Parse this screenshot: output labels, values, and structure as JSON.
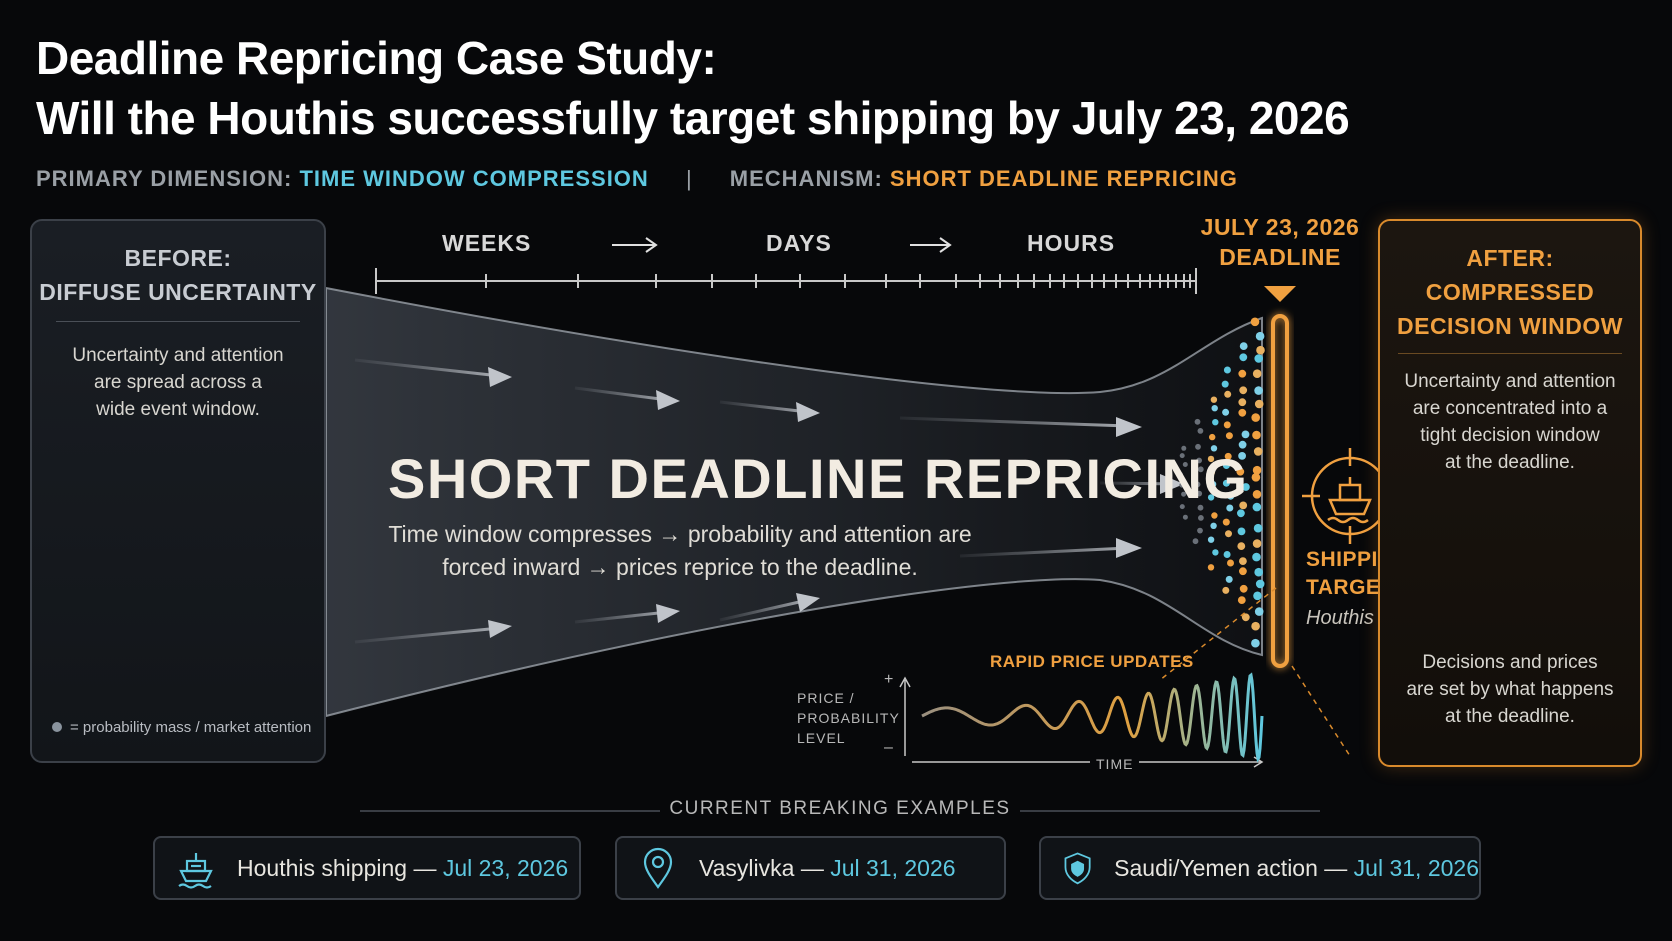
{
  "title": {
    "line1": "Deadline Repricing Case Study:",
    "line2": "Will the Houthis successfully target shipping by July 23, 2026"
  },
  "subtitle": {
    "dimension_label": "PRIMARY DIMENSION:",
    "dimension_value": "TIME WINDOW COMPRESSION",
    "separator": "|",
    "mechanism_label": "MECHANISM:",
    "mechanism_value": "SHORT DEADLINE REPRICING"
  },
  "before_panel": {
    "heading_line1": "BEFORE:",
    "heading_line2": "DIFFUSE UNCERTAINTY",
    "body": [
      "Uncertainty and attention",
      "are spread across a",
      "wide event window."
    ],
    "legend": "= probability mass / market attention"
  },
  "timeline": {
    "stages": [
      "WEEKS",
      "DAYS",
      "HOURS"
    ],
    "arrow": "→",
    "deadline_line1": "JULY 23, 2026",
    "deadline_line2": "DEADLINE"
  },
  "funnel": {
    "label": "SHORT DEADLINE REPRICING",
    "desc_line1": "Time window compresses → probability and attention are",
    "desc_line2": "forced inward → prices reprice to the deadline."
  },
  "price_chart": {
    "title": "RAPID PRICE UPDATES",
    "y_label": [
      "PRICE /",
      "PROBABILITY",
      "LEVEL"
    ],
    "y_plus": "+",
    "y_minus": "–",
    "x_label": "TIME"
  },
  "target_event": {
    "line1": "SHIPPING",
    "line2": "TARGET EVENT",
    "sub": "Houthis case"
  },
  "after_panel": {
    "heading_line1": "AFTER:",
    "heading_line2": "COMPRESSED",
    "heading_line3": "DECISION WINDOW",
    "body": [
      "Uncertainty and attention",
      "are concentrated into a",
      "tight decision window",
      "at the deadline."
    ],
    "footer": [
      "Decisions and prices",
      "are set by what happens",
      "at the deadline."
    ]
  },
  "examples": {
    "heading": "CURRENT BREAKING EXAMPLES",
    "items": [
      {
        "name": "Houthis shipping",
        "dash": "—",
        "date": "Jul 23, 2026",
        "icon": "ship-icon"
      },
      {
        "name": "Vasylivka",
        "dash": "—",
        "date": "Jul 31, 2026",
        "icon": "map-pin-icon"
      },
      {
        "name": "Saudi/Yemen action",
        "dash": "—",
        "date": "Jul 31, 2026",
        "icon": "shield-icon"
      }
    ]
  },
  "colors": {
    "amber": "#f0a040",
    "cyan": "#5ec8e0",
    "background": "#07080a"
  }
}
